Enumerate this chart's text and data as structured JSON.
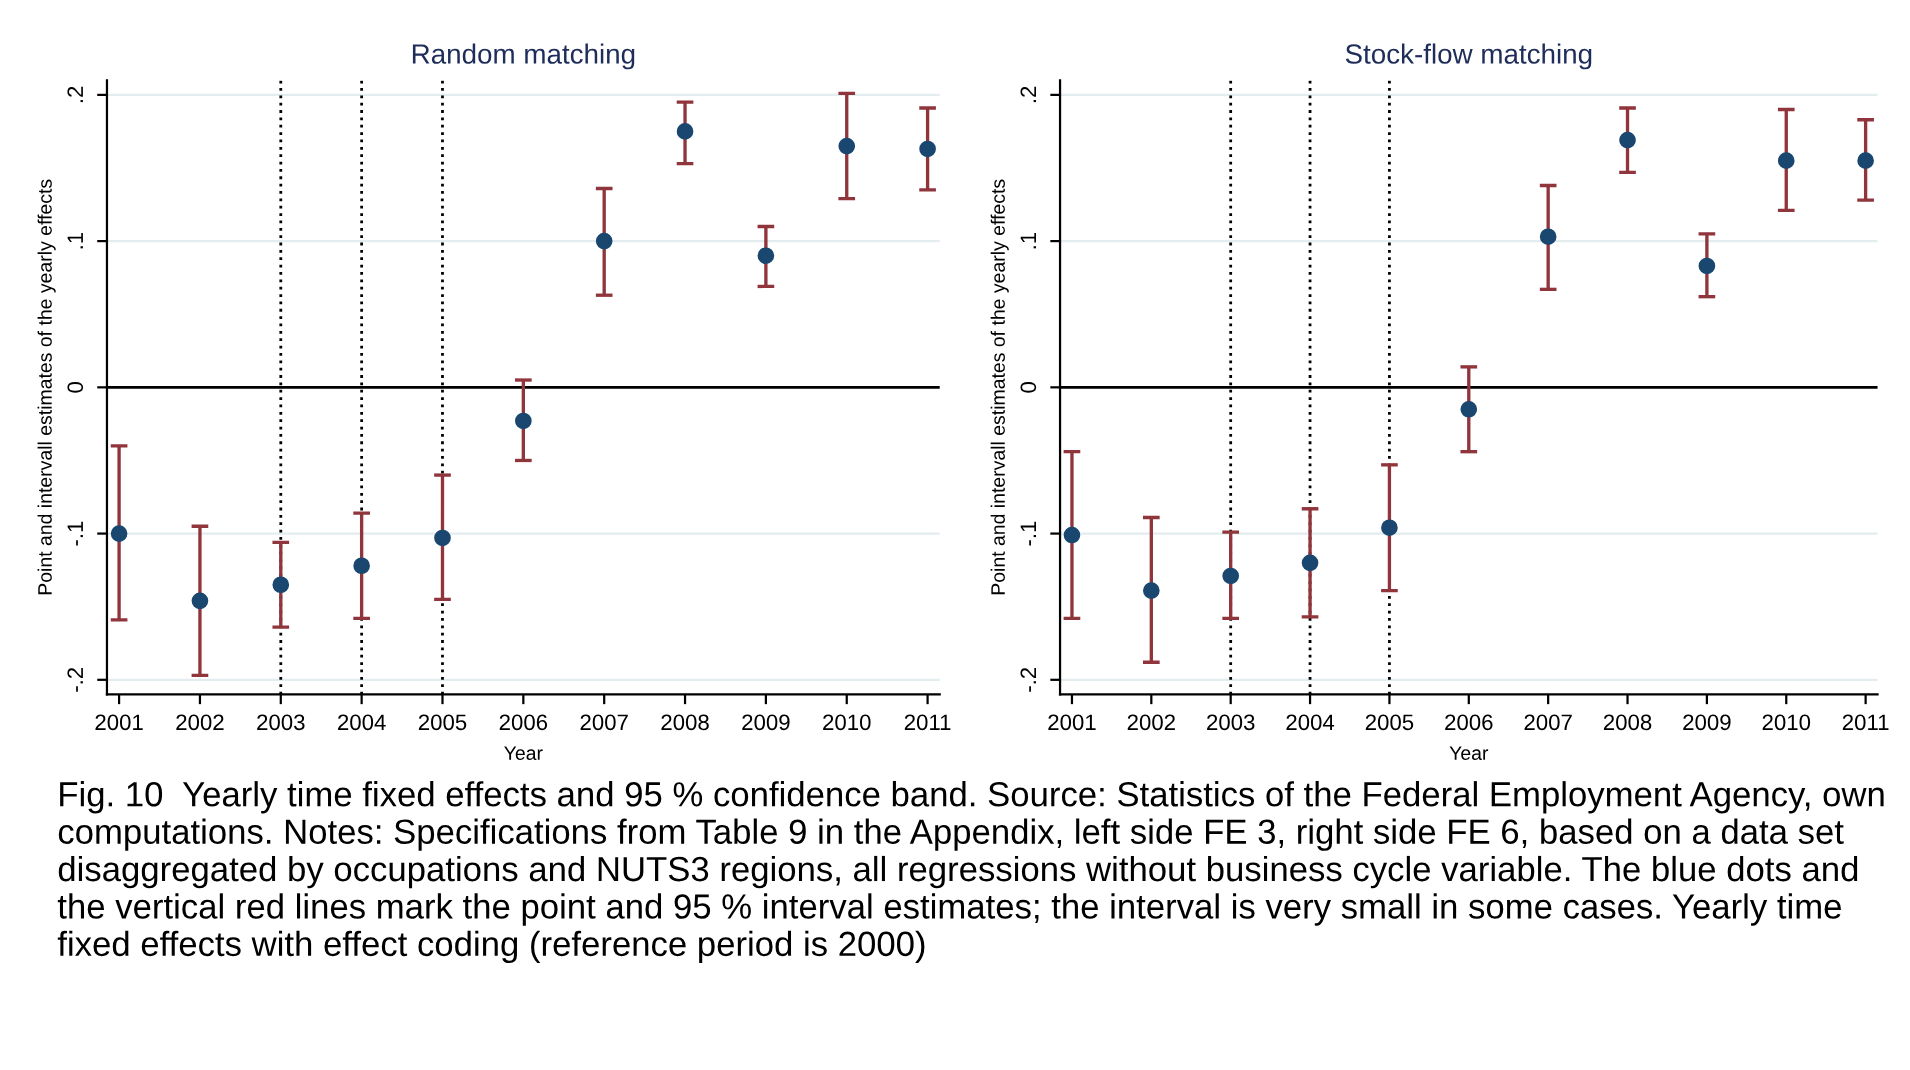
{
  "chart_data": [
    {
      "type": "scatter",
      "title": "Random matching",
      "xlabel": "Year",
      "ylabel": "Point and intervall estimates of the yearly effects",
      "x": [
        2001,
        2002,
        2003,
        2004,
        2005,
        2006,
        2007,
        2008,
        2009,
        2010,
        2011
      ],
      "series": [
        {
          "color": "#1a476f",
          "values": [
            -0.1,
            -0.146,
            -0.135,
            -0.122,
            -0.103,
            -0.023,
            0.1,
            0.175,
            0.09,
            0.165,
            0.163
          ],
          "errors": [
            [
              -0.159,
              -0.04
            ],
            [
              -0.197,
              -0.095
            ],
            [
              -0.164,
              -0.106
            ],
            [
              -0.158,
              -0.086
            ],
            [
              -0.145,
              -0.06
            ],
            [
              -0.05,
              0.005
            ],
            [
              0.063,
              0.136
            ],
            [
              0.153,
              0.195
            ],
            [
              0.069,
              0.11
            ],
            [
              0.129,
              0.201
            ],
            [
              0.135,
              0.191
            ]
          ]
        }
      ],
      "xlim": [
        2000.85,
        2011.15
      ],
      "xticks": [
        2001,
        2002,
        2003,
        2004,
        2005,
        2006,
        2007,
        2008,
        2009,
        2010,
        2011
      ],
      "ylim": [
        -0.21,
        0.21
      ],
      "yticks": [
        {
          "value": -0.2,
          "label": "-.2"
        },
        {
          "value": -0.1,
          "label": "-.1"
        },
        0,
        {
          "value": 0.1,
          "label": ".1"
        },
        {
          "value": 0.2,
          "label": ".2"
        }
      ],
      "grid": "y",
      "marker": "circle",
      "ref_lines": [
        {
          "axis": "y",
          "value": 0,
          "color": "#000000",
          "line_style": "solid"
        },
        {
          "axis": "x",
          "value": 2003,
          "color": "#000000",
          "line_style": "dotted"
        },
        {
          "axis": "x",
          "value": 2004,
          "color": "#000000",
          "line_style": "dotted"
        },
        {
          "axis": "x",
          "value": 2005,
          "color": "#000000",
          "line_style": "dotted"
        }
      ],
      "annotations": [
        "Fig. 10  Yearly time fixed effects and 95 % confidence band. Source: Statistics of the Federal Employment Agency, own computations. Notes: Specifications from Table 9 in the Appendix, left side FE 3, right side FE 6, based on a data set disaggregated by occupations and NUTS3 regions, all regressions without business cycle variable. The blue dots and the vertical red lines mark the point and 95 % interval estimates; the interval is very small in some cases. Yearly time fixed effects with effect coding (reference period is 2000)"
      ]
    },
    {
      "type": "scatter",
      "title": "Stock-flow matching",
      "xlabel": "Year",
      "ylabel": "Point and intervall estimates of the yearly effects",
      "x": [
        2001,
        2002,
        2003,
        2004,
        2005,
        2006,
        2007,
        2008,
        2009,
        2010,
        2011
      ],
      "series": [
        {
          "color": "#1a476f",
          "values": [
            -0.101,
            -0.139,
            -0.129,
            -0.12,
            -0.096,
            -0.015,
            0.103,
            0.169,
            0.083,
            0.155,
            0.155
          ],
          "errors": [
            [
              -0.158,
              -0.044
            ],
            [
              -0.188,
              -0.089
            ],
            [
              -0.158,
              -0.099
            ],
            [
              -0.157,
              -0.083
            ],
            [
              -0.139,
              -0.053
            ],
            [
              -0.044,
              0.014
            ],
            [
              0.067,
              0.138
            ],
            [
              0.147,
              0.191
            ],
            [
              0.062,
              0.105
            ],
            [
              0.121,
              0.19
            ],
            [
              0.128,
              0.183
            ]
          ]
        }
      ],
      "xlim": [
        2000.85,
        2011.15
      ],
      "xticks": [
        2001,
        2002,
        2003,
        2004,
        2005,
        2006,
        2007,
        2008,
        2009,
        2010,
        2011
      ],
      "ylim": [
        -0.21,
        0.21
      ],
      "yticks": [
        {
          "value": -0.2,
          "label": "-.2"
        },
        {
          "value": -0.1,
          "label": "-.1"
        },
        0,
        {
          "value": 0.1,
          "label": ".1"
        },
        {
          "value": 0.2,
          "label": ".2"
        }
      ],
      "grid": "y",
      "marker": "circle",
      "ref_lines": [
        {
          "axis": "y",
          "value": 0,
          "color": "#000000",
          "line_style": "solid"
        },
        {
          "axis": "x",
          "value": 2003,
          "color": "#000000",
          "line_style": "dotted"
        },
        {
          "axis": "x",
          "value": 2004,
          "color": "#000000",
          "line_style": "dotted"
        },
        {
          "axis": "x",
          "value": 2005,
          "color": "#000000",
          "line_style": "dotted"
        }
      ]
    }
  ]
}
